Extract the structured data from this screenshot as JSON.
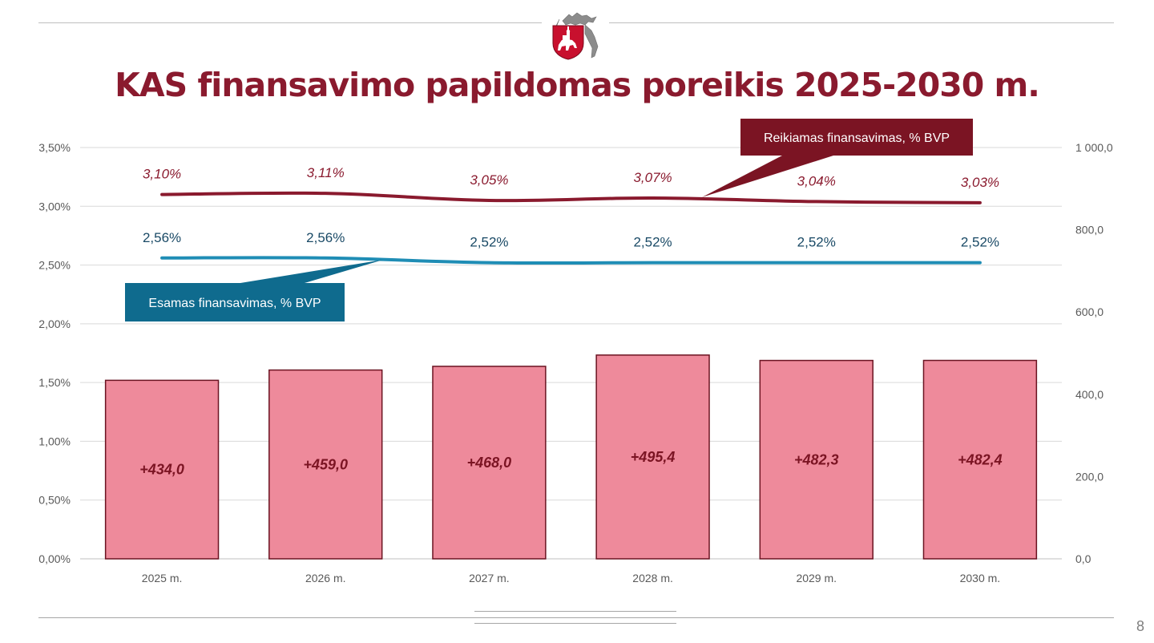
{
  "slide": {
    "title": "KAS finansavimo papildomas poreikis 2025-2030 m.",
    "page_number": "8"
  },
  "colors": {
    "title": "#8a1a2e",
    "bar_fill": "#ee8a9b",
    "bar_stroke": "#6b1422",
    "required_line": "#8a1a2e",
    "current_line": "#1f8db5",
    "callout_required_bg": "#7b1423",
    "callout_current_bg": "#0f6b8e",
    "current_label": "#1a4a66",
    "grid": "#d9d9d9",
    "axis_text": "#595959"
  },
  "chart_data": {
    "type": "bar",
    "categories": [
      "2025 m.",
      "2026 m.",
      "2027 m.",
      "2028 m.",
      "2029 m.",
      "2030 m."
    ],
    "left_axis": {
      "min": 0,
      "max": 0.035,
      "ticks": [
        "0,00%",
        "0,50%",
        "1,00%",
        "1,50%",
        "2,00%",
        "2,50%",
        "3,00%",
        "3,50%"
      ]
    },
    "right_axis": {
      "min": 0,
      "max": 1000,
      "ticks": [
        "0,0",
        "200,0",
        "400,0",
        "600,0",
        "800,0",
        "1 000,0"
      ]
    },
    "grid": true,
    "bars": {
      "values": [
        434.0,
        459.0,
        468.0,
        495.4,
        482.3,
        482.4
      ],
      "labels": [
        "+434,0",
        "+459,0",
        "+468,0",
        "+495,4",
        "+482,3",
        "+482,4"
      ],
      "axis": "right"
    },
    "series": [
      {
        "name": "Reikiamas finansavimas, % BVP",
        "type": "line",
        "axis": "left",
        "values": [
          3.1,
          3.11,
          3.05,
          3.07,
          3.04,
          3.03
        ],
        "labels": [
          "3,10%",
          "3,11%",
          "3,05%",
          "3,07%",
          "3,04%",
          "3,03%"
        ]
      },
      {
        "name": "Esamas finansavimas, % BVP",
        "type": "line",
        "axis": "left",
        "values": [
          2.56,
          2.56,
          2.52,
          2.52,
          2.52,
          2.52
        ],
        "labels": [
          "2,56%",
          "2,56%",
          "2,52%",
          "2,52%",
          "2,52%",
          "2,52%"
        ]
      }
    ]
  }
}
